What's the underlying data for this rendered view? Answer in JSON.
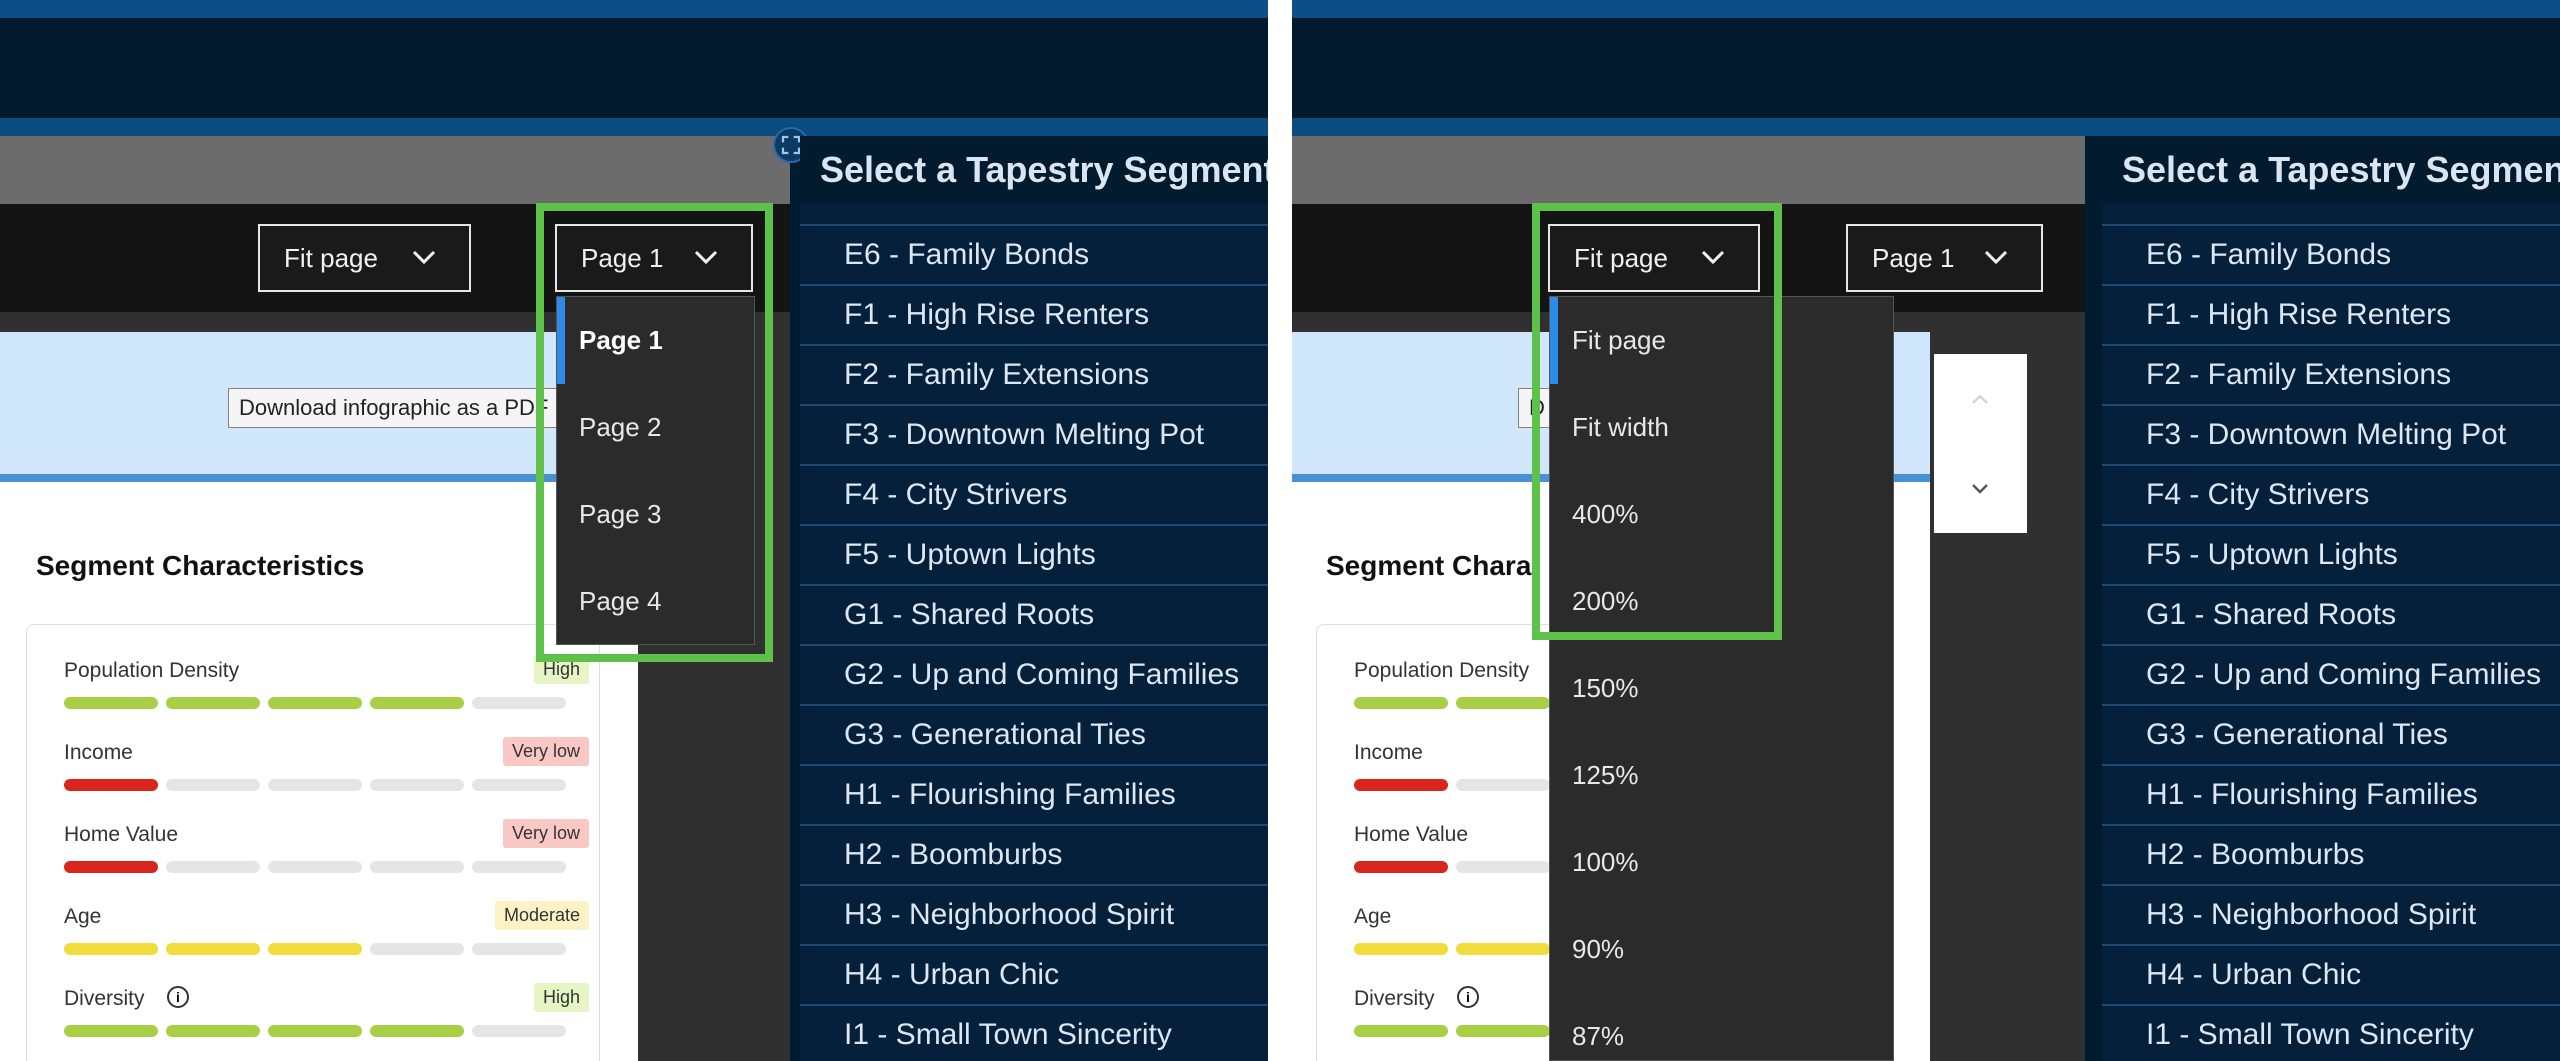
{
  "left": {
    "viewer": {
      "zoom_select": "Fit page",
      "page_select": "Page 1",
      "pdf_button": "Download infographic as a PDF",
      "section_title": "Segment Characteristics",
      "metrics": [
        {
          "label": "Population Density",
          "badge": "High",
          "level": 4,
          "color": "#a8cf45",
          "badge_bg": "#e6f5c4",
          "badge_fg": "#333333",
          "info": false
        },
        {
          "label": "Income",
          "badge": "Very low",
          "level": 1,
          "color": "#d9261c",
          "badge_bg": "#f9c8c4",
          "badge_fg": "#333333",
          "info": false
        },
        {
          "label": "Home Value",
          "badge": "Very low",
          "level": 1,
          "color": "#d9261c",
          "badge_bg": "#f9c8c4",
          "badge_fg": "#333333",
          "info": false
        },
        {
          "label": "Age",
          "badge": "Moderate",
          "level": 3,
          "color": "#f0dc3a",
          "badge_bg": "#fbf3c6",
          "badge_fg": "#333333",
          "info": false
        },
        {
          "label": "Diversity",
          "badge": "High",
          "level": 4,
          "color": "#a8cf45",
          "badge_bg": "#e6f5c4",
          "badge_fg": "#333333",
          "info": true
        }
      ]
    },
    "dropdown": {
      "items": [
        "Page 1",
        "Page 2",
        "Page 3",
        "Page 4"
      ],
      "selected": "Page 1"
    }
  },
  "right": {
    "viewer": {
      "zoom_select": "Fit page",
      "page_select": "Page 1",
      "pdf_button": "D",
      "section_title": "Segment Chara",
      "metrics": [
        {
          "label": "Population Density",
          "level": 2,
          "color": "#a8cf45",
          "info": false
        },
        {
          "label": "Income",
          "level": 1,
          "color": "#d9261c",
          "info": false
        },
        {
          "label": "Home Value",
          "level": 1,
          "color": "#d9261c",
          "info": false
        },
        {
          "label": "Age",
          "level": 2,
          "color": "#f0dc3a",
          "info": false
        },
        {
          "label": "Diversity",
          "level": 2,
          "color": "#a8cf45",
          "info": true
        }
      ]
    },
    "dropdown": {
      "items": [
        "Fit page",
        "Fit width",
        "400%",
        "200%",
        "150%",
        "125%",
        "100%",
        "90%",
        "87%"
      ],
      "selected": "Fit page"
    }
  },
  "segments": {
    "title": "Select a Tapestry Segment",
    "items": [
      "E6 - Family Bonds",
      "F1 - High Rise Renters",
      "F2 - Family Extensions",
      "F3 - Downtown Melting Pot",
      "F4 - City Strivers",
      "F5 - Uptown Lights",
      "G1 - Shared Roots",
      "G2 - Up and Coming Families",
      "G3 - Generational Ties",
      "H1 - Flourishing Families",
      "H2 - Boomburbs",
      "H3 - Neighborhood Spirit",
      "H4 - Urban Chic",
      "I1 - Small Town Sincerity"
    ]
  },
  "colors": {
    "highlight": "#5ec24a",
    "accent": "#2b8be6",
    "segment_panel": "#05203a"
  }
}
